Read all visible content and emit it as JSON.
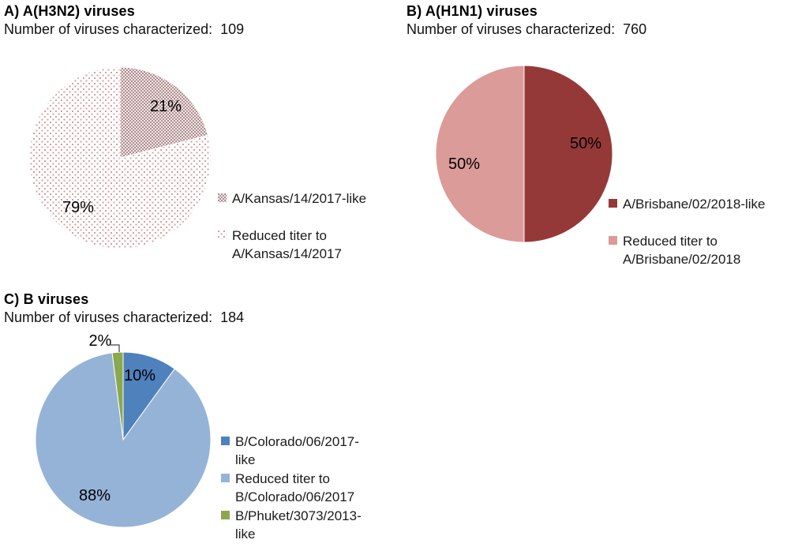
{
  "palette": {
    "h3n2_checker_fg": "#b08c8e",
    "h3n2_checker_bg": "#f2ebeb",
    "h3n2_dots_fg": "#d5a0a2",
    "h3n2_dots_bg": "#ffffff",
    "h1n1_dark_red": "#953938",
    "h1n1_light_pink": "#db9b99",
    "b_dark_blue": "#4f81bd",
    "b_light_blue": "#95b3d7",
    "b_green": "#8aa84d",
    "label_text": "#000000",
    "leader_line": "#404040",
    "background": "#ffffff"
  },
  "chart_data": [
    {
      "type": "pie",
      "panel_label": "A",
      "title": "A) A(H3N2) viruses",
      "subtitle": "Number of viruses characterized:  109",
      "number_characterized": 109,
      "legend_position": "right",
      "start_angle_deg": 0,
      "slices": [
        {
          "label": "A/Kansas/14/2017-like",
          "legend_lines": [
            "A/Kansas/14/2017-like"
          ],
          "value_pct": 21,
          "data_label": "21%",
          "fill": "pattern:checker"
        },
        {
          "label": "Reduced titer to A/Kansas/14/2017",
          "legend_lines": [
            "Reduced titer to",
            "A/Kansas/14/2017"
          ],
          "value_pct": 79,
          "data_label": "79%",
          "fill": "pattern:dots"
        }
      ]
    },
    {
      "type": "pie",
      "panel_label": "B",
      "title": "B) A(H1N1) viruses",
      "subtitle": "Number of viruses characterized:  760",
      "number_characterized": 760,
      "legend_position": "right",
      "start_angle_deg": 0,
      "slices": [
        {
          "label": "A/Brisbane/02/2018-like",
          "legend_lines": [
            "A/Brisbane/02/2018-like"
          ],
          "value_pct": 50,
          "data_label": "50%",
          "fill": "#953938"
        },
        {
          "label": "Reduced titer to A/Brisbane/02/2018",
          "legend_lines": [
            "Reduced titer to",
            "A/Brisbane/02/2018"
          ],
          "value_pct": 50,
          "data_label": "50%",
          "fill": "#db9b99"
        }
      ]
    },
    {
      "type": "pie",
      "panel_label": "C",
      "title": "C) B viruses",
      "subtitle": "Number of viruses characterized:  184",
      "number_characterized": 184,
      "legend_position": "right",
      "start_angle_deg": 0,
      "slices": [
        {
          "label": "B/Colorado/06/2017-like",
          "legend_lines": [
            "B/Colorado/06/2017-",
            "like"
          ],
          "value_pct": 10,
          "data_label": "10%",
          "fill": "#4f81bd"
        },
        {
          "label": "Reduced titer to B/Colorado/06/2017",
          "legend_lines": [
            "Reduced titer to",
            "B/Colorado/06/2017"
          ],
          "value_pct": 88,
          "data_label": "88%",
          "fill": "#95b3d7"
        },
        {
          "label": "B/Phuket/3073/2013-like",
          "legend_lines": [
            "B/Phuket/3073/2013-",
            "like"
          ],
          "value_pct": 2,
          "data_label": "2%",
          "fill": "#8aa84d"
        }
      ]
    }
  ]
}
